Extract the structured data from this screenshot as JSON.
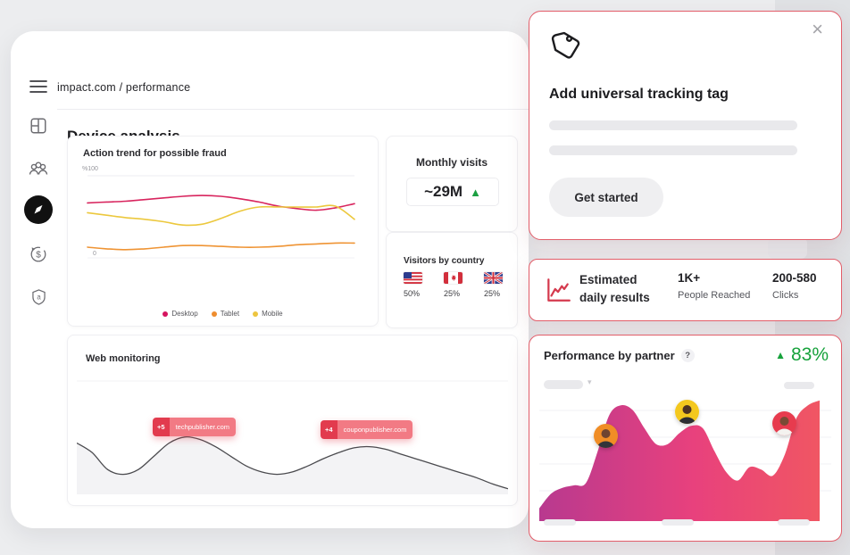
{
  "app": {
    "breadcrumb": "impact.com / performance",
    "page_title": "Device analysis"
  },
  "sidebar": {
    "icons": [
      "menu",
      "dashboard",
      "partners",
      "discover",
      "finance",
      "security"
    ],
    "active": "discover"
  },
  "device_analysis_card": {
    "title": "Action trend for possible fraud",
    "y_axis_top": "%100",
    "y_axis_bottom": "0",
    "legend": [
      {
        "label": "Desktop",
        "color": "#d6145f"
      },
      {
        "label": "Tablet",
        "color": "#ee8d2f"
      },
      {
        "label": "Mobile",
        "color": "#edc53f"
      }
    ],
    "chart_data": {
      "type": "line",
      "x": "time (unlabeled)",
      "ylim": [
        0,
        100
      ],
      "series": [
        {
          "name": "Desktop",
          "color": "#d8255e",
          "values": [
            67,
            68,
            69,
            71,
            73,
            75,
            76,
            75,
            72,
            68,
            63,
            60,
            58,
            61,
            66
          ]
        },
        {
          "name": "Tablet",
          "color": "#ef9434",
          "values": [
            13,
            11,
            10,
            11,
            13,
            15,
            15,
            14,
            13,
            13,
            14,
            16,
            17,
            18,
            18
          ]
        },
        {
          "name": "Mobile",
          "color": "#ecc83d",
          "values": [
            55,
            52,
            49,
            47,
            44,
            40,
            41,
            48,
            57,
            62,
            62,
            62,
            62,
            63,
            47
          ]
        }
      ]
    }
  },
  "monthly_visits_card": {
    "title": "Monthly visits",
    "value": "~29M",
    "trend": "up",
    "trend_glyph": "▲",
    "trend_color": "#1ca042"
  },
  "visitors_card": {
    "title": "Visitors by country",
    "entries": [
      {
        "country": "United States",
        "flag": "us",
        "share": "50%"
      },
      {
        "country": "Canada",
        "flag": "ca",
        "share": "25%"
      },
      {
        "country": "United Kingdom",
        "flag": "uk",
        "share": "25%"
      }
    ]
  },
  "web_monitoring_card": {
    "title": "Web monitoring",
    "badges": [
      {
        "delta": "+5",
        "domain": "techpublisher.com"
      },
      {
        "delta": "+4",
        "domain": "couponpublisher.com"
      }
    ],
    "chart_data": {
      "type": "area",
      "note": "unlabeled monitoring trend, percent-from-top of plot",
      "values": [
        50,
        58,
        72,
        76,
        72,
        61,
        50,
        45,
        47,
        53,
        61,
        69,
        74,
        76,
        74,
        69,
        63,
        58,
        54,
        53,
        55,
        59,
        63,
        67,
        71,
        75,
        79,
        84,
        88
      ],
      "line_color": "#4a4a4e",
      "fill_color": "#f3f3f5"
    }
  },
  "tracking_card": {
    "heading": "Add universal tracking tag",
    "button_label": "Get started"
  },
  "estimated_card": {
    "title_line1": "Estimated",
    "title_line2": "daily results",
    "stats": [
      {
        "value": "1K+",
        "label": "People Reached"
      },
      {
        "value": "200-580",
        "label": "Clicks"
      }
    ],
    "icon_color": "#d53a4e"
  },
  "performance_card": {
    "title": "Performance by partner",
    "help": "?",
    "change_glyph": "▲",
    "change": "83%",
    "change_color": "#17a23c",
    "gradient": [
      "#b8398f",
      "#e8417d",
      "#f05663"
    ],
    "avatars": [
      {
        "color": "#f08d26"
      },
      {
        "color": "#f4c81e"
      },
      {
        "color": "#e73b4e"
      }
    ],
    "chart_data": {
      "type": "area",
      "note": "partner performance trend, percent-from-top of plot",
      "values": [
        91,
        79,
        74,
        72,
        70,
        44,
        14,
        6,
        10,
        25,
        38,
        38,
        29,
        23,
        25,
        44,
        61,
        68,
        57,
        59,
        64,
        47,
        17,
        6,
        2
      ]
    }
  }
}
